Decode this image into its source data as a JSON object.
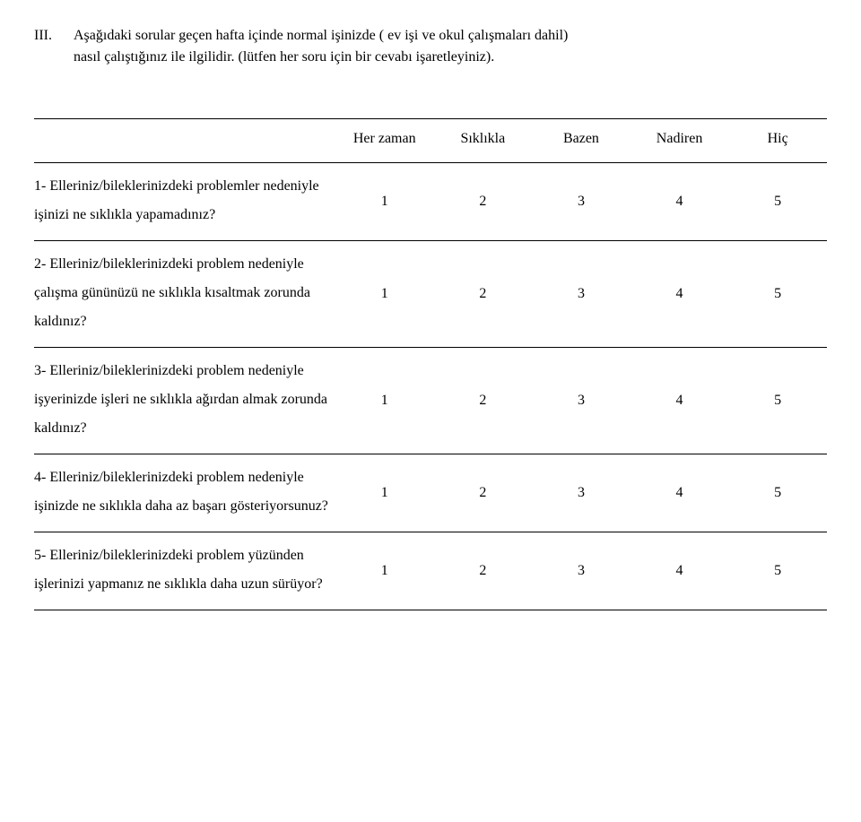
{
  "intro": {
    "section_marker": "III.",
    "line1": "Aşağıdaki sorular geçen hafta içinde normal işinizde ( ev işi ve okul çalışmaları dahil)",
    "line2": "nasıl çalıştığınız ile ilgilidir. (lütfen her soru için bir cevabı işaretleyiniz)."
  },
  "table": {
    "columns": [
      "Her zaman",
      "Sıklıkla",
      "Bazen",
      "Nadiren",
      "Hiç"
    ],
    "values": [
      "1",
      "2",
      "3",
      "4",
      "5"
    ],
    "rows": [
      {
        "question": "1- Elleriniz/bileklerinizdeki problemler nedeniyle işinizi ne sıklıkla yapamadınız?"
      },
      {
        "question": "2- Elleriniz/bileklerinizdeki problem nedeniyle çalışma gününüzü ne sıklıkla kısaltmak zorunda kaldınız?"
      },
      {
        "question": "3- Elleriniz/bileklerinizdeki problem nedeniyle işyerinizde işleri ne sıklıkla ağırdan almak zorunda kaldınız?"
      },
      {
        "question": "4- Elleriniz/bileklerinizdeki problem nedeniyle işinizde ne sıklıkla daha az başarı gösteriyorsunuz?"
      },
      {
        "question": "5- Elleriniz/bileklerinizdeki problem yüzünden işlerinizi yapmanız ne sıklıkla daha uzun sürüyor?"
      }
    ]
  }
}
